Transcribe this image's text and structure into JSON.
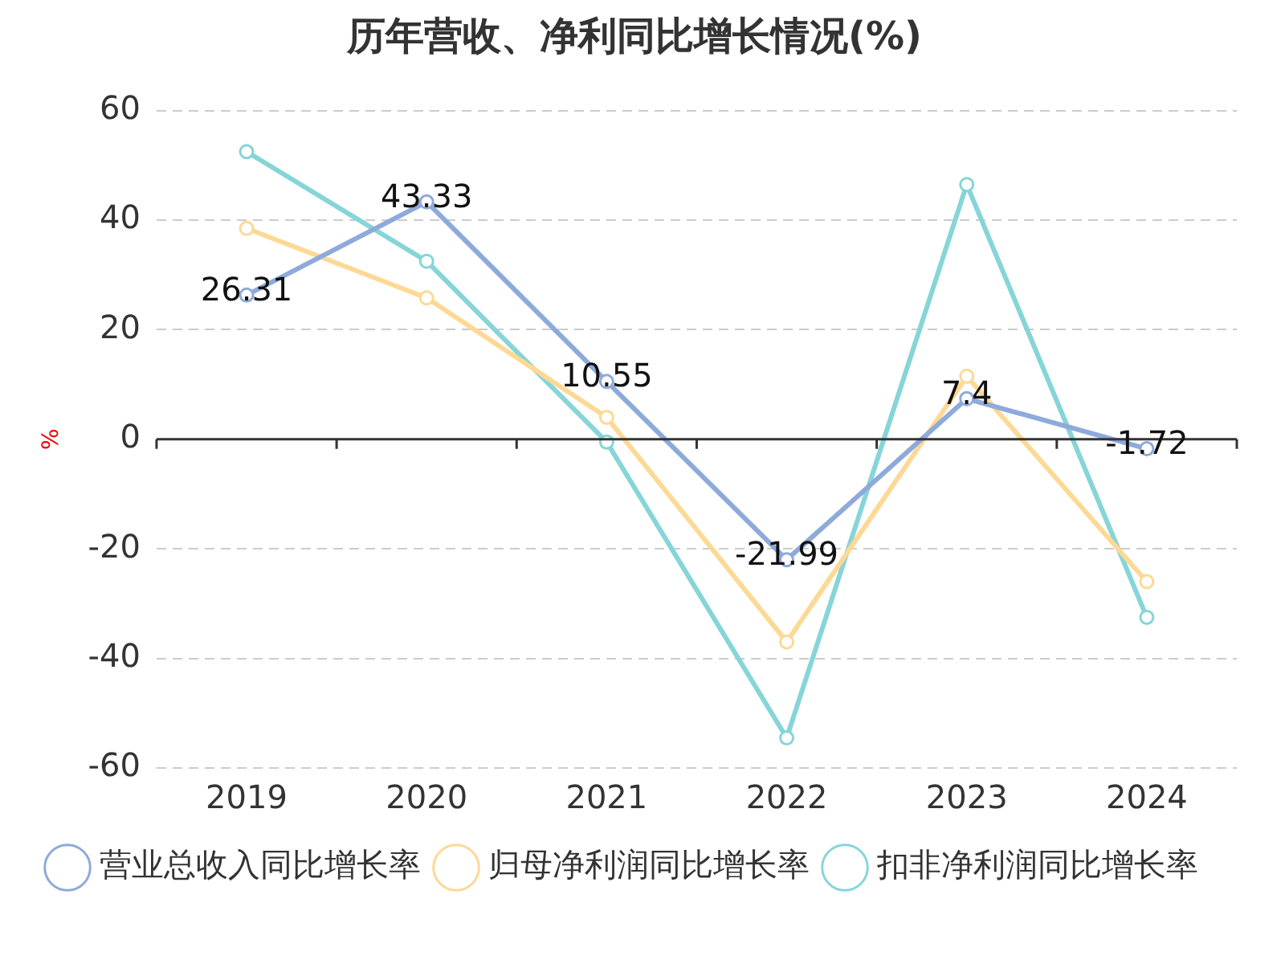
{
  "chart_data": {
    "type": "line",
    "title": "历年营收、净利同比增长情况(%)",
    "ylabel": "%",
    "categories": [
      "2019",
      "2020",
      "2021",
      "2022",
      "2023",
      "2024"
    ],
    "ylim": [
      -60,
      60
    ],
    "yticks": [
      -60,
      -40,
      -20,
      0,
      20,
      40,
      60
    ],
    "grid": "y",
    "legend": "bottom",
    "marker": "circle",
    "line_style": "solid",
    "series": [
      {
        "name": "营业总收入同比增长率",
        "color": "#8eaadb",
        "values": [
          26.31,
          43.33,
          10.55,
          -21.99,
          7.4,
          -1.72
        ],
        "value_labels": [
          "26.31",
          "43.33",
          "10.55",
          "-21.99",
          "7.4",
          "-1.72"
        ]
      },
      {
        "name": "归母净利润同比增长率",
        "color": "#fdd995",
        "values": [
          38.5,
          25.8,
          4,
          -37,
          11.5,
          -26
        ]
      },
      {
        "name": "扣非净利润同比增长率",
        "color": "#86d5d8",
        "values": [
          52.5,
          32.5,
          -0.5,
          -54.5,
          46.5,
          -32.5
        ]
      }
    ]
  }
}
